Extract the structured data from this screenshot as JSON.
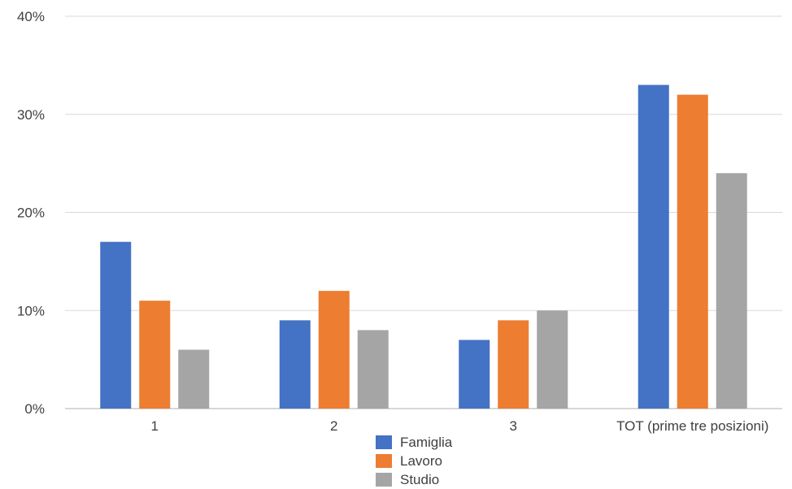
{
  "chart_data": {
    "type": "bar",
    "categories": [
      "1",
      "2",
      "3",
      "TOT (prime tre posizioni)"
    ],
    "series": [
      {
        "name": "Famiglia",
        "color": "#4472C4",
        "values": [
          17,
          9,
          7,
          33
        ]
      },
      {
        "name": "Lavoro",
        "color": "#ED7D31",
        "values": [
          11,
          12,
          9,
          32
        ]
      },
      {
        "name": "Studio",
        "color": "#A5A5A5",
        "values": [
          6,
          8,
          10,
          24
        ]
      }
    ],
    "ylim": [
      0,
      40
    ],
    "yticks": [
      "0%",
      "10%",
      "20%",
      "30%",
      "40%"
    ],
    "ytick_values": [
      0,
      10,
      20,
      30,
      40
    ],
    "grid": true,
    "legend_position": "bottom"
  }
}
